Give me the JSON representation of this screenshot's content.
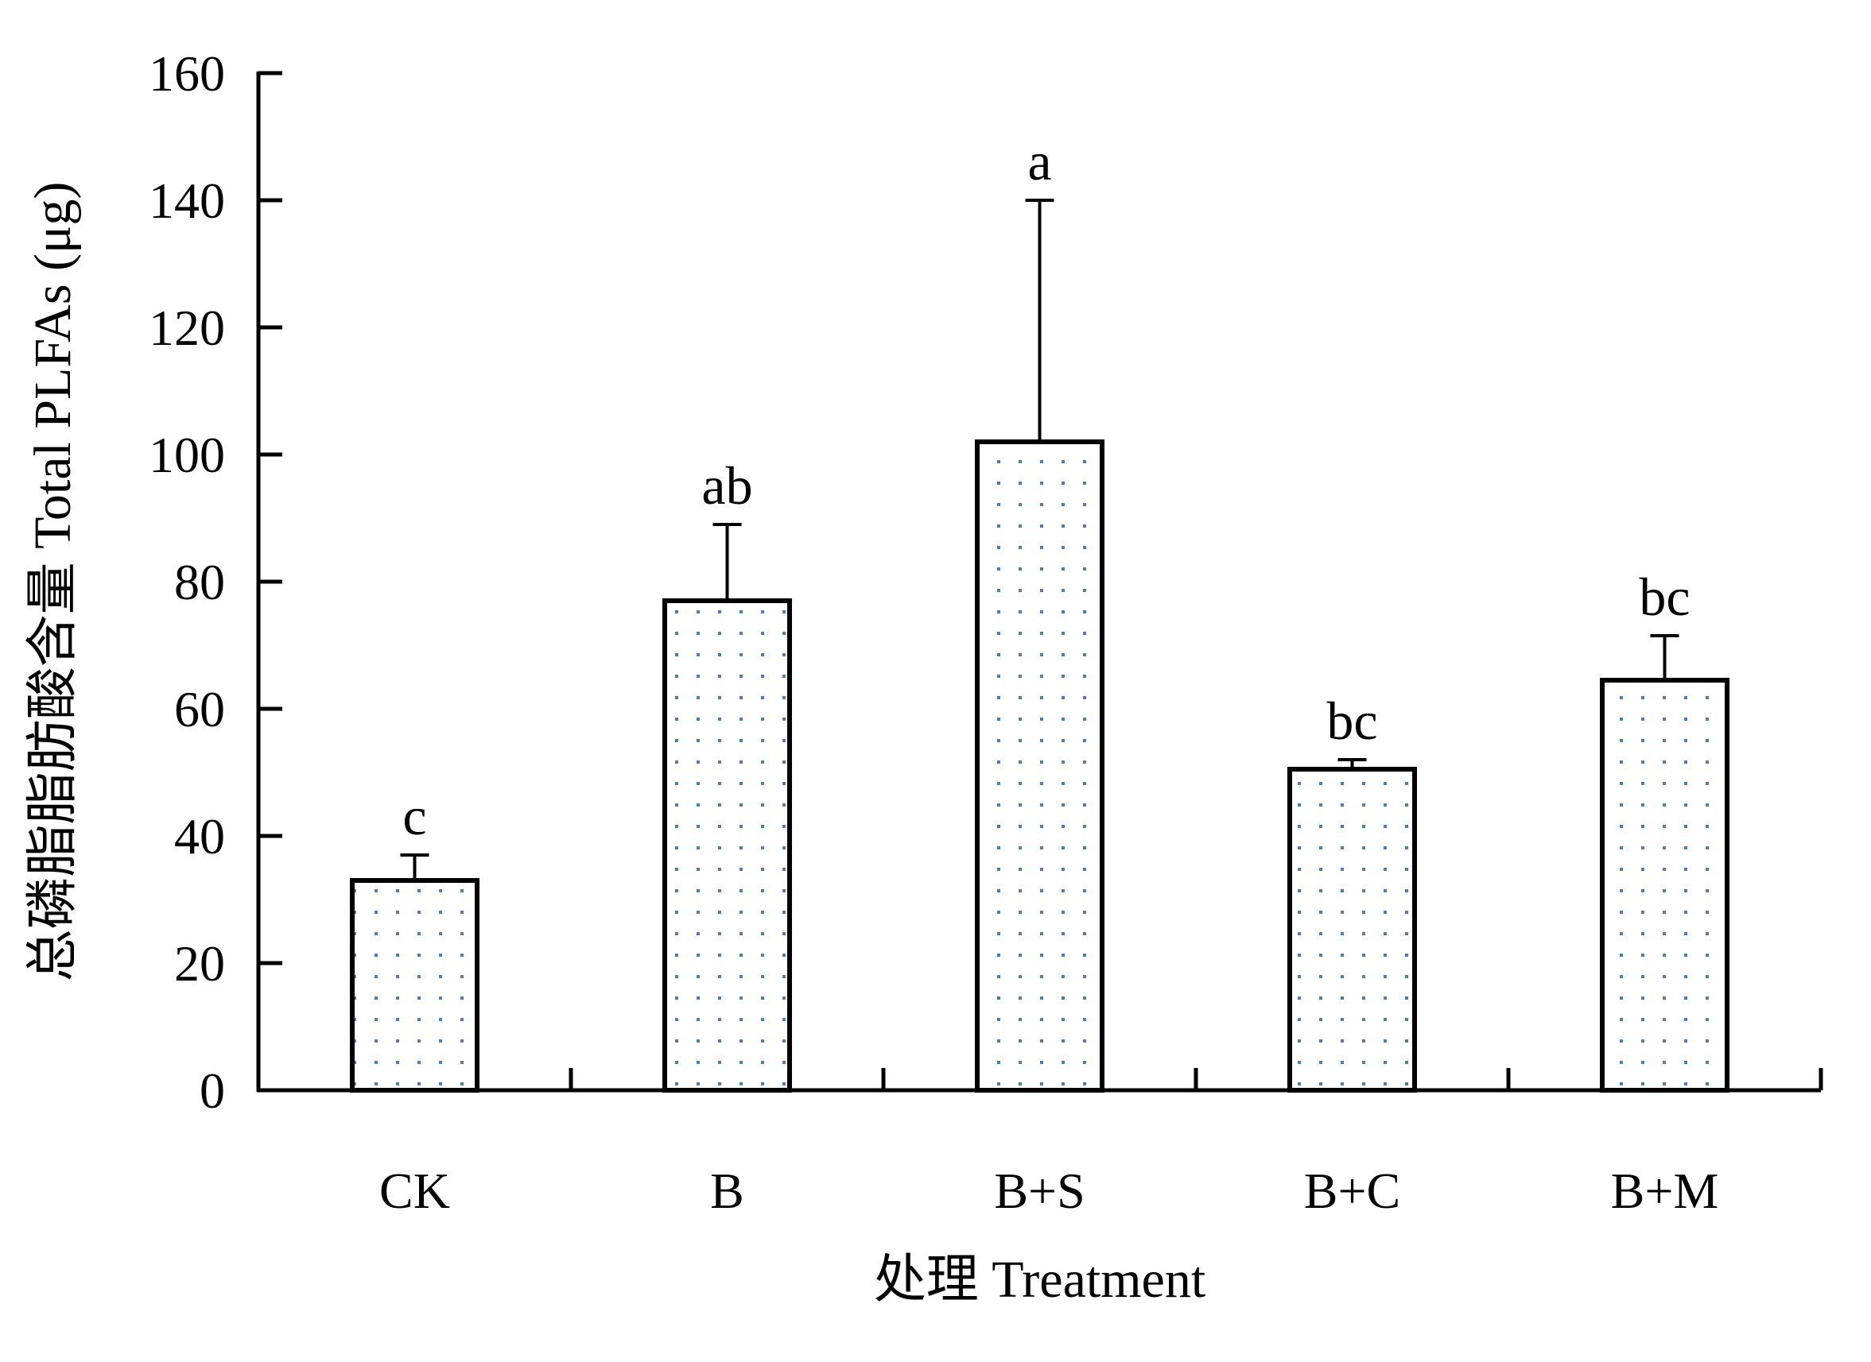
{
  "chart_data": {
    "type": "bar",
    "title": "",
    "xlabel": "处理 Treatment",
    "ylabel": "总磷脂脂肪酸含量 Total PLFAs (μg)",
    "categories": [
      "CK",
      "B",
      "B+S",
      "B+C",
      "B+M"
    ],
    "values": [
      33,
      77,
      102,
      50.5,
      64.5
    ],
    "errors": [
      4,
      12,
      38,
      1.5,
      7
    ],
    "significance": [
      "c",
      "ab",
      "a",
      "bc",
      "bc"
    ],
    "ylim": [
      0,
      160
    ],
    "yticks": [
      "0",
      "20",
      "40",
      "60",
      "80",
      "100",
      "120",
      "140",
      "160"
    ],
    "grid": false,
    "legend": "none",
    "colors": {
      "bar_fill": "#ffffff",
      "bar_stroke": "#000000",
      "dot": "#4a7ebb",
      "axis": "#000000"
    }
  }
}
